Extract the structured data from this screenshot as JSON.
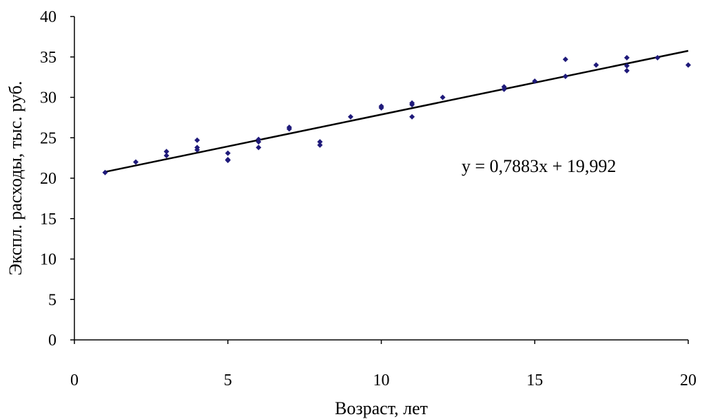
{
  "chart_data": {
    "type": "scatter",
    "xlabel": "Возраст, лет",
    "ylabel": "Экспл. расходы, тыс. руб.",
    "xlim": [
      0,
      20
    ],
    "ylim": [
      0,
      40
    ],
    "x_ticks": [
      "0",
      "5",
      "10",
      "15",
      "20"
    ],
    "y_ticks": [
      "0",
      "5",
      "10",
      "15",
      "20",
      "25",
      "30",
      "35",
      "40"
    ],
    "grid": false,
    "marker_color": "#1f1a7a",
    "line_color": "#000000",
    "points": [
      {
        "x": 1,
        "y": 20.7
      },
      {
        "x": 2,
        "y": 22.0
      },
      {
        "x": 3,
        "y": 23.3
      },
      {
        "x": 3,
        "y": 22.8
      },
      {
        "x": 4,
        "y": 24.7
      },
      {
        "x": 4,
        "y": 23.8
      },
      {
        "x": 4,
        "y": 23.5
      },
      {
        "x": 5,
        "y": 23.1
      },
      {
        "x": 5,
        "y": 22.3
      },
      {
        "x": 5,
        "y": 22.2
      },
      {
        "x": 6,
        "y": 24.8
      },
      {
        "x": 6,
        "y": 24.5
      },
      {
        "x": 6,
        "y": 23.8
      },
      {
        "x": 7,
        "y": 26.3
      },
      {
        "x": 7,
        "y": 26.1
      },
      {
        "x": 8,
        "y": 24.5
      },
      {
        "x": 8,
        "y": 24.1
      },
      {
        "x": 9,
        "y": 27.6
      },
      {
        "x": 10,
        "y": 28.9
      },
      {
        "x": 10,
        "y": 28.7
      },
      {
        "x": 11,
        "y": 29.3
      },
      {
        "x": 11,
        "y": 29.1
      },
      {
        "x": 11,
        "y": 27.6
      },
      {
        "x": 12,
        "y": 30.0
      },
      {
        "x": 14,
        "y": 31.3
      },
      {
        "x": 14,
        "y": 31.0
      },
      {
        "x": 15,
        "y": 32.0
      },
      {
        "x": 16,
        "y": 34.7
      },
      {
        "x": 16,
        "y": 32.6
      },
      {
        "x": 17,
        "y": 34.0
      },
      {
        "x": 18,
        "y": 34.9
      },
      {
        "x": 18,
        "y": 33.9
      },
      {
        "x": 18,
        "y": 33.3
      },
      {
        "x": 19,
        "y": 34.9
      },
      {
        "x": 20,
        "y": 34.0
      }
    ],
    "trendline": {
      "slope": 0.7883,
      "intercept": 19.992,
      "x_range": [
        1,
        20
      ],
      "equation": "y = 0,7883x + 19,992"
    }
  }
}
